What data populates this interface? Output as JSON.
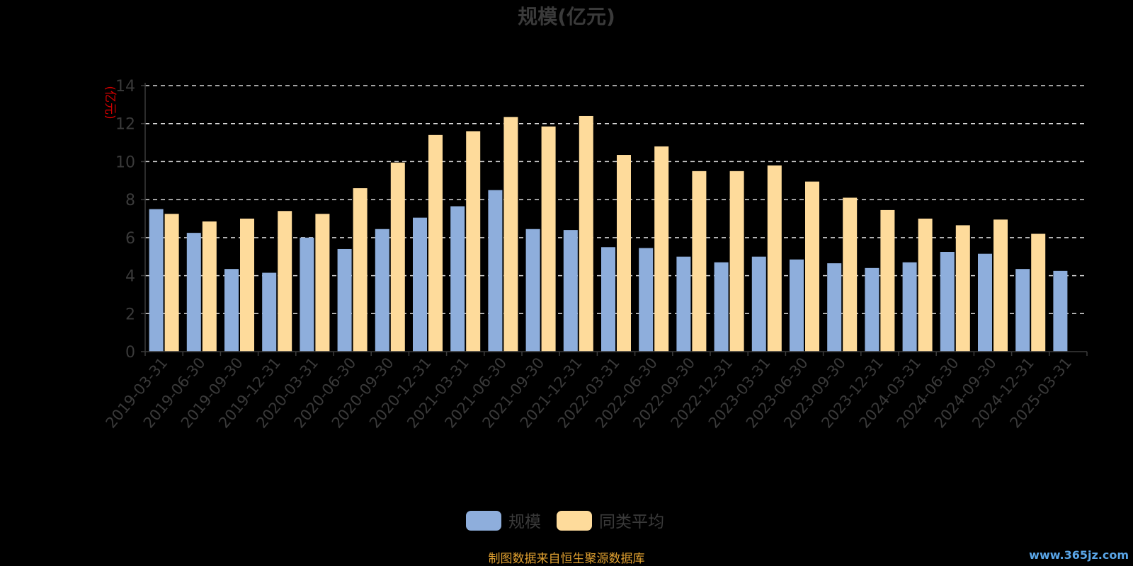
{
  "chart_data": {
    "type": "bar",
    "title": "规模(亿元)",
    "ylabel": "(亿元)",
    "xlabel": "",
    "ylim": [
      0,
      14
    ],
    "yticks": [
      0,
      2,
      4,
      6,
      8,
      10,
      12,
      14
    ],
    "grid": true,
    "legend_position": "bottom",
    "categories": [
      "2019-03-31",
      "2019-06-30",
      "2019-09-30",
      "2019-12-31",
      "2020-03-31",
      "2020-06-30",
      "2020-09-30",
      "2020-12-31",
      "2021-03-31",
      "2021-06-30",
      "2021-09-30",
      "2021-12-31",
      "2022-03-31",
      "2022-06-30",
      "2022-09-30",
      "2022-12-31",
      "2023-03-31",
      "2023-06-30",
      "2023-09-30",
      "2023-12-31",
      "2024-03-31",
      "2024-06-30",
      "2024-09-30",
      "2024-12-31",
      "2025-03-31"
    ],
    "series": [
      {
        "name": "规模",
        "color": "#8eaedc",
        "values": [
          7.5,
          6.25,
          4.35,
          4.15,
          6.0,
          5.4,
          6.45,
          7.05,
          7.65,
          8.5,
          6.45,
          6.4,
          5.5,
          5.45,
          5.0,
          4.7,
          5.0,
          4.85,
          4.65,
          4.4,
          4.7,
          5.25,
          5.15,
          4.35,
          4.25
        ]
      },
      {
        "name": "同类平均",
        "color": "#fedb9b",
        "values": [
          7.25,
          6.85,
          7.0,
          7.4,
          7.25,
          8.6,
          9.95,
          11.4,
          11.6,
          12.35,
          11.85,
          12.4,
          10.35,
          10.8,
          9.5,
          9.5,
          9.8,
          8.95,
          8.1,
          7.45,
          7.0,
          6.65,
          6.95,
          6.2,
          null
        ]
      }
    ]
  },
  "footer": "制图数据来自恒生聚源数据库",
  "watermark": "www.365jz.com"
}
